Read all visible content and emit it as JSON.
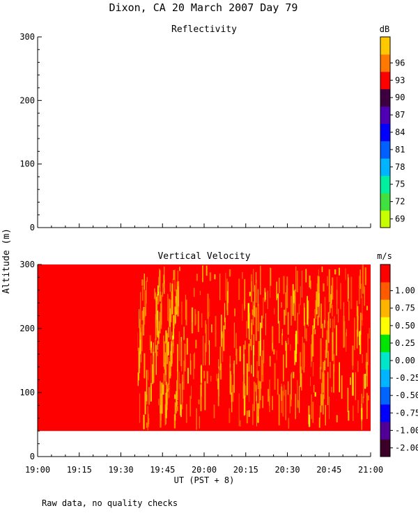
{
  "header": {
    "title": "Dixon, CA 20 March 2007  Day  79"
  },
  "footer": {
    "note": "Raw data, no quality checks"
  },
  "ylabel": "Altitude (m)",
  "xlabel": "UT  (PST + 8)",
  "chart_data": [
    {
      "type": "heatmap",
      "title": "Reflectivity",
      "x_ticks": [
        "19:00",
        "19:15",
        "19:30",
        "19:45",
        "20:00",
        "20:15",
        "20:30",
        "20:45",
        "21:00"
      ],
      "xlim": [
        "19:00",
        "21:00"
      ],
      "ylim": [
        0,
        300
      ],
      "y_ticks": [
        0,
        100,
        200,
        300
      ],
      "colorbar": {
        "unit": "dB",
        "labels": [
          "69",
          "72",
          "75",
          "78",
          "81",
          "84",
          "87",
          "90",
          "93",
          "96"
        ],
        "colors": [
          "#c8ff00",
          "#40e040",
          "#00f0a0",
          "#00b4ff",
          "#0060ff",
          "#0000ff",
          "#5000b4",
          "#3c0040",
          "#ff0000",
          "#ff7800",
          "#ffc800"
        ]
      },
      "data": "no echoes shown (blank)"
    },
    {
      "type": "heatmap",
      "title": "Vertical Velocity",
      "x_ticks": [
        "19:00",
        "19:15",
        "19:30",
        "19:45",
        "20:00",
        "20:15",
        "20:30",
        "20:45",
        "21:00"
      ],
      "xlim": [
        "19:00",
        "21:00"
      ],
      "ylim": [
        0,
        300
      ],
      "y_ticks": [
        0,
        100,
        200,
        300
      ],
      "data_altitude_range_m": [
        40,
        300
      ],
      "background_value": "> 1.00 m/s (red)",
      "streaks_start": "19:36",
      "streak_values": "0.50 to 1.00 m/s (orange/yellow)",
      "colorbar": {
        "unit": "m/s",
        "labels": [
          "-2.00",
          "-1.00",
          "-0.75",
          "-0.50",
          "-0.25",
          "0.00",
          "0.25",
          "0.50",
          "0.75",
          "1.00"
        ],
        "colors": [
          "#3c0028",
          "#500096",
          "#0000ff",
          "#0064ff",
          "#00b4ff",
          "#00e6c8",
          "#00e600",
          "#ffff00",
          "#ffb400",
          "#ff5a00",
          "#ff0000"
        ]
      }
    }
  ]
}
